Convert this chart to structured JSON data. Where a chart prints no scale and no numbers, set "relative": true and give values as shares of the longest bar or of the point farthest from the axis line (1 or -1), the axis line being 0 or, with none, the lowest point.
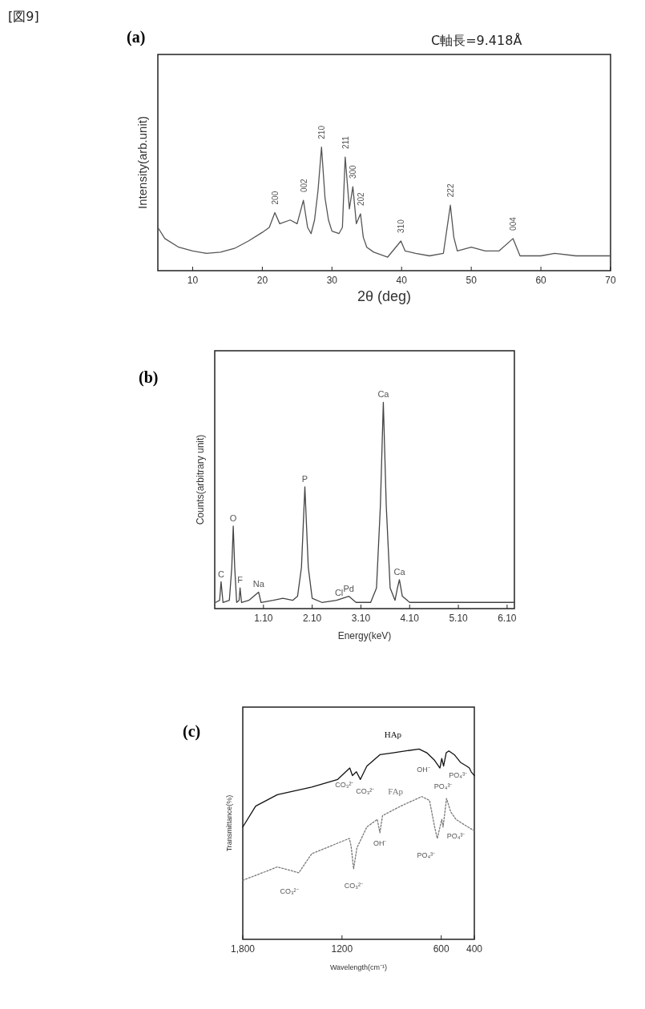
{
  "chart_data": [
    {
      "type": "line",
      "title": "(a)",
      "xlabel": "2θ (deg)",
      "ylabel": "Intensity(arb.unit)",
      "relative": true,
      "xlim": [
        5,
        70
      ],
      "xticks": [
        10,
        20,
        30,
        40,
        50,
        60,
        70
      ],
      "annotations": [
        "[図9]",
        "C軸長=9.418Å",
        {
          "text": "200",
          "x": 21.8,
          "y": 0.47
        },
        {
          "text": "002",
          "x": 25.9,
          "y": 0.57
        },
        {
          "text": "210",
          "x": 28.5,
          "y": 1
        },
        {
          "text": "211",
          "x": 31.9,
          "y": 0.92
        },
        {
          "text": "300",
          "x": 33,
          "y": 0.68
        },
        {
          "text": "202",
          "x": 34.1,
          "y": 0.46
        },
        {
          "text": "310",
          "x": 39.9,
          "y": 0.24
        },
        {
          "text": "222",
          "x": 47,
          "y": 0.53
        },
        {
          "text": "004",
          "x": 56,
          "y": 0.26
        }
      ],
      "series": [
        {
          "color": "#555555",
          "x": [
            5,
            6,
            8,
            10,
            12,
            14,
            16,
            18,
            20,
            21,
            21.8,
            22.5,
            24,
            25,
            25.9,
            26.5,
            27,
            27.5,
            28,
            28.5,
            29,
            29.5,
            30,
            31,
            31.5,
            31.9,
            32.5,
            33,
            33.5,
            34.1,
            34.5,
            35,
            36,
            38,
            39.9,
            40.5,
            42,
            44,
            46,
            47,
            47.5,
            48,
            50,
            52,
            54,
            56,
            57,
            60,
            62,
            65,
            70
          ],
          "values": [
            0.35,
            0.26,
            0.19,
            0.16,
            0.14,
            0.15,
            0.18,
            0.24,
            0.31,
            0.35,
            0.47,
            0.38,
            0.41,
            0.38,
            0.57,
            0.35,
            0.3,
            0.41,
            0.65,
            1,
            0.59,
            0.41,
            0.32,
            0.3,
            0.35,
            0.92,
            0.5,
            0.68,
            0.38,
            0.46,
            0.27,
            0.19,
            0.15,
            0.11,
            0.24,
            0.16,
            0.14,
            0.12,
            0.14,
            0.53,
            0.27,
            0.16,
            0.19,
            0.16,
            0.16,
            0.26,
            0.12,
            0.12,
            0.14,
            0.12,
            0.12
          ]
        }
      ]
    },
    {
      "type": "line",
      "title": "(b)",
      "xlabel": "Energy(keV)",
      "ylabel": "Counts(arbitrary unit)",
      "relative": true,
      "xlim": [
        0.1,
        6.25
      ],
      "xticks": [
        {
          "value": 1.1,
          "label": "1.10"
        },
        {
          "value": 2.1,
          "label": "2.10"
        },
        {
          "value": 3.1,
          "label": "3.10"
        },
        {
          "value": 4.1,
          "label": "4.10"
        },
        {
          "value": 5.1,
          "label": "5.10"
        },
        {
          "value": 6.1,
          "label": "6.10"
        }
      ],
      "annotations": [
        {
          "text": "C",
          "x": 0.23,
          "y": 0.13
        },
        {
          "text": "O",
          "x": 0.48,
          "y": 0.4
        },
        {
          "text": "F",
          "x": 0.62,
          "y": 0.1
        },
        {
          "text": "Na",
          "x": 1,
          "y": 0.08
        },
        {
          "text": "P",
          "x": 1.95,
          "y": 0.59
        },
        {
          "text": "Cl",
          "x": 2.65,
          "y": 0.04
        },
        {
          "text": "Pd",
          "x": 2.85,
          "y": 0.06
        },
        {
          "text": "Ca",
          "x": 3.56,
          "y": 1
        },
        {
          "text": "Ca",
          "x": 3.89,
          "y": 0.14
        }
      ],
      "series": [
        {
          "color": "#444444",
          "x": [
            0.12,
            0.2,
            0.23,
            0.27,
            0.4,
            0.45,
            0.48,
            0.51,
            0.55,
            0.6,
            0.62,
            0.65,
            0.8,
            1,
            1.05,
            1.3,
            1.5,
            1.7,
            1.8,
            1.88,
            1.95,
            2.02,
            2.1,
            2.3,
            2.6,
            2.85,
            3,
            3.3,
            3.42,
            3.5,
            3.56,
            3.62,
            3.7,
            3.8,
            3.85,
            3.89,
            3.95,
            4.1,
            5,
            6.25
          ],
          "values": [
            0.03,
            0.04,
            0.13,
            0.03,
            0.04,
            0.2,
            0.4,
            0.2,
            0.03,
            0.04,
            0.1,
            0.03,
            0.04,
            0.08,
            0.03,
            0.04,
            0.05,
            0.04,
            0.06,
            0.2,
            0.59,
            0.2,
            0.05,
            0.03,
            0.04,
            0.06,
            0.03,
            0.03,
            0.1,
            0.5,
            1,
            0.5,
            0.1,
            0.04,
            0.1,
            0.14,
            0.06,
            0.03,
            0.03,
            0.03
          ]
        }
      ]
    },
    {
      "type": "line",
      "title": "(c)",
      "xlabel": "Wavelength(cm⁻¹)",
      "ylabel": "Transmittance(%)",
      "relative": true,
      "xlim": [
        1800,
        400
      ],
      "xticks": [
        {
          "value": 1800,
          "label": "1,800"
        },
        1200,
        600,
        400
      ],
      "annotations": [
        {
          "text": "CO₃²⁻",
          "x": 1137,
          "y": 0.86
        },
        {
          "text": "CO₃²⁻",
          "x": 1089,
          "y": 0.84
        },
        {
          "text": "OH⁻",
          "x": 640,
          "y": 0.94
        },
        {
          "text": "PO₄³⁻",
          "x": 608,
          "y": 0.9
        },
        {
          "text": "PO₄³⁻",
          "x": 586,
          "y": 0.91
        },
        {
          "text": "CO₃²⁻",
          "x": 1461,
          "y": 0.35
        },
        {
          "text": "CO₃²⁻",
          "x": 1130,
          "y": 0.37
        },
        {
          "text": "OH⁻",
          "x": 971,
          "y": 0.56
        },
        {
          "text": "PO₄³⁻",
          "x": 624,
          "y": 0.53
        },
        {
          "text": "PO₄³⁻",
          "x": 589,
          "y": 0.59
        }
      ],
      "series": [
        {
          "name": "HAp",
          "color": "#111111",
          "line_style": "solid",
          "x": [
            1800,
            1722,
            1591,
            1383,
            1226,
            1153,
            1137,
            1113,
            1089,
            1050,
            971,
            892,
            734,
            687,
            640,
            608,
            597,
            586,
            570,
            554,
            521,
            484,
            446,
            430,
            419,
            400
          ],
          "values": [
            0.59,
            0.7,
            0.76,
            0.8,
            0.84,
            0.9,
            0.86,
            0.88,
            0.84,
            0.91,
            0.97,
            0.98,
            1,
            0.98,
            0.94,
            0.9,
            0.95,
            0.91,
            0.98,
            0.99,
            0.97,
            0.93,
            0.91,
            0.9,
            0.88,
            0.86
          ]
        },
        {
          "name": "FAp",
          "color": "#777777",
          "line_style": "dotted",
          "x": [
            1800,
            1591,
            1461,
            1383,
            1156,
            1145,
            1130,
            1110,
            1050,
            987,
            971,
            955,
            845,
            718,
            671,
            640,
            624,
            597,
            589,
            568,
            543,
            511,
            457,
            400
          ],
          "values": [
            0.31,
            0.38,
            0.35,
            0.45,
            0.53,
            0.49,
            0.37,
            0.48,
            0.59,
            0.63,
            0.56,
            0.65,
            0.7,
            0.75,
            0.73,
            0.59,
            0.53,
            0.63,
            0.59,
            0.74,
            0.67,
            0.63,
            0.6,
            0.57
          ]
        }
      ]
    }
  ]
}
